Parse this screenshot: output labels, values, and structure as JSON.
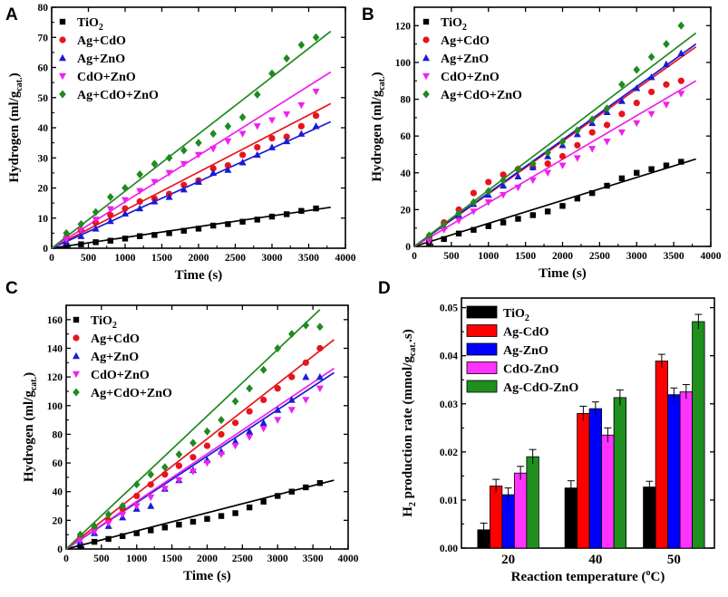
{
  "figure": {
    "panels": [
      "A",
      "B",
      "C",
      "D"
    ]
  },
  "colors": {
    "TiO2": "#000000",
    "Ag+CdO": "#e8141b",
    "Ag+ZnO": "#1a1ad6",
    "CdO+ZnO": "#ee21ee",
    "Ag+CdO+ZnO": "#1f8a1f",
    "bar_TiO2": "#000000",
    "bar_AgCdO": "#ff0000",
    "bar_AgZnO": "#0000ff",
    "bar_CdOZnO": "#ff33ff",
    "bar_AgCdOZnO": "#1f8f1f"
  },
  "chart_data": [
    {
      "panel": "A",
      "type": "scatter",
      "xlabel": "Time (s)",
      "ylabel_main": "Hydrogen (ml/g",
      "ylabel_sub": "cat.",
      "ylabel_end": ")",
      "xlim": [
        0,
        4000
      ],
      "ylim": [
        0,
        80
      ],
      "xticks": [
        0,
        500,
        1000,
        1500,
        2000,
        2500,
        3000,
        3500,
        4000
      ],
      "yticks": [
        0,
        10,
        20,
        30,
        40,
        50,
        60,
        70,
        80
      ],
      "legend": {
        "position": "top-left"
      },
      "series": [
        {
          "key": "TiO2",
          "label_main": "TiO",
          "label_sub": "2",
          "marker": "square",
          "x": [
            200,
            400,
            600,
            800,
            1000,
            1200,
            1400,
            1600,
            1800,
            2000,
            2200,
            2400,
            2600,
            2800,
            3000,
            3200,
            3400,
            3600
          ],
          "y": [
            0.8,
            1.3,
            2.0,
            2.5,
            3.2,
            4.0,
            4.4,
            5.0,
            5.8,
            6.5,
            7.5,
            8.0,
            8.8,
            9.5,
            10.5,
            11.3,
            12.4,
            13.2
          ],
          "fit": [
            3800,
            13.6
          ]
        },
        {
          "key": "Ag+CdO",
          "label_main": "Ag+CdO",
          "label_sub": "",
          "marker": "circle",
          "x": [
            200,
            400,
            600,
            800,
            1000,
            1200,
            1400,
            1600,
            1800,
            2000,
            2200,
            2400,
            2600,
            2800,
            3000,
            3200,
            3400,
            3600
          ],
          "y": [
            3.5,
            6.0,
            8.5,
            11.0,
            13.2,
            15.5,
            16.5,
            18.0,
            21.0,
            22.5,
            26.5,
            27.5,
            31.0,
            33.5,
            36.5,
            37.0,
            40.5,
            44.0
          ],
          "fit": [
            3800,
            48.0
          ]
        },
        {
          "key": "Ag+ZnO",
          "label_main": "Ag+ZnO",
          "label_sub": "",
          "marker": "triangle",
          "x": [
            200,
            400,
            600,
            800,
            1000,
            1200,
            1400,
            1600,
            1800,
            2000,
            2200,
            2400,
            2600,
            2800,
            3000,
            3200,
            3400,
            3600
          ],
          "y": [
            2.0,
            4.0,
            6.5,
            9.0,
            11.5,
            13.2,
            15.5,
            17.0,
            19.5,
            22.0,
            25.0,
            26.0,
            28.5,
            31.0,
            33.5,
            35.5,
            38.0,
            40.5
          ],
          "fit": [
            3800,
            42.0
          ]
        },
        {
          "key": "CdO+ZnO",
          "label_main": "CdO+ZnO",
          "label_sub": "",
          "marker": "triangle-down",
          "x": [
            200,
            400,
            600,
            800,
            1000,
            1200,
            1400,
            1600,
            1800,
            2000,
            2200,
            2400,
            2600,
            2800,
            3000,
            3200,
            3400,
            3600
          ],
          "y": [
            3.0,
            6.0,
            9.5,
            13.0,
            16.0,
            19.0,
            22.0,
            25.0,
            28.0,
            31.0,
            33.0,
            35.5,
            38.0,
            40.5,
            42.5,
            44.5,
            47.5,
            52.0
          ],
          "fit": [
            3800,
            58.5
          ]
        },
        {
          "key": "Ag+CdO+ZnO",
          "label_main": "Ag+CdO+ZnO",
          "label_sub": "",
          "marker": "diamond",
          "x": [
            200,
            400,
            600,
            800,
            1000,
            1200,
            1400,
            1600,
            1800,
            2000,
            2200,
            2400,
            2600,
            2800,
            3000,
            3200,
            3400,
            3600
          ],
          "y": [
            5.0,
            8.0,
            12.0,
            17.0,
            20.0,
            24.5,
            28.0,
            30.0,
            32.5,
            35.0,
            38.0,
            40.5,
            43.5,
            51.0,
            58.0,
            63.0,
            67.5,
            70.0
          ],
          "fit": [
            3800,
            72.0
          ]
        }
      ]
    },
    {
      "panel": "B",
      "type": "scatter",
      "xlabel": "Time (s)",
      "ylabel_main": "Hydrogen (ml/g",
      "ylabel_sub": "cat.",
      "ylabel_end": ")",
      "xlim": [
        0,
        4000
      ],
      "ylim": [
        0,
        130
      ],
      "xticks": [
        0,
        500,
        1000,
        1500,
        2000,
        2500,
        3000,
        3500,
        4000
      ],
      "yticks": [
        0,
        20,
        40,
        60,
        80,
        100,
        120
      ],
      "legend": {
        "position": "top-left"
      },
      "series": [
        {
          "key": "TiO2",
          "label_main": "TiO",
          "label_sub": "2",
          "marker": "square",
          "x": [
            200,
            400,
            600,
            800,
            1000,
            1200,
            1400,
            1600,
            1800,
            2000,
            2200,
            2400,
            2600,
            2800,
            3000,
            3200,
            3400,
            3600
          ],
          "y": [
            2.0,
            4.0,
            7.0,
            9.0,
            11.0,
            13.0,
            15.0,
            17.0,
            19.0,
            22.0,
            26.0,
            29.0,
            33.0,
            37.0,
            40.0,
            42.0,
            44.0,
            46.0
          ],
          "fit": [
            3800,
            47.5
          ]
        },
        {
          "key": "Ag+CdO",
          "label_main": "Ag+CdO",
          "label_sub": "",
          "marker": "circle",
          "x": [
            200,
            400,
            600,
            800,
            1000,
            1200,
            1400,
            1600,
            1800,
            2000,
            2200,
            2400,
            2600,
            2800,
            3000,
            3200,
            3400,
            3600
          ],
          "y": [
            5.0,
            13.0,
            20.0,
            29.0,
            35.0,
            39.0,
            42.0,
            43.0,
            45.0,
            49.0,
            55.0,
            62.0,
            66.0,
            72.0,
            78.0,
            84.0,
            88.0,
            90.0
          ],
          "fit": [
            3800,
            108.5
          ]
        },
        {
          "key": "Ag+ZnO",
          "label_main": "Ag+ZnO",
          "label_sub": "",
          "marker": "triangle",
          "x": [
            200,
            400,
            600,
            800,
            1000,
            1200,
            1400,
            1600,
            1800,
            2000,
            2200,
            2400,
            2600,
            2800,
            3000,
            3200,
            3400,
            3600
          ],
          "y": [
            5.0,
            11.0,
            17.0,
            23.0,
            28.0,
            33.0,
            38.0,
            43.0,
            49.0,
            55.0,
            61.0,
            67.0,
            73.0,
            79.0,
            86.0,
            92.0,
            99.0,
            105.0
          ],
          "fit": [
            3800,
            110.0
          ]
        },
        {
          "key": "CdO+ZnO",
          "label_main": "CdO+ZnO",
          "label_sub": "",
          "marker": "triangle-down",
          "x": [
            200,
            400,
            600,
            800,
            1000,
            1200,
            1400,
            1600,
            1800,
            2000,
            2200,
            2400,
            2600,
            2800,
            3000,
            3200,
            3400,
            3600
          ],
          "y": [
            3.0,
            9.0,
            14.0,
            19.0,
            24.0,
            28.0,
            32.0,
            36.0,
            40.0,
            44.0,
            48.0,
            53.0,
            57.0,
            62.0,
            67.0,
            72.0,
            77.0,
            83.0
          ],
          "fit": [
            3800,
            90.0
          ]
        },
        {
          "key": "Ag+CdO+ZnO",
          "label_main": "Ag+CdO+ZnO",
          "label_sub": "",
          "marker": "diamond",
          "x": [
            200,
            400,
            600,
            800,
            1000,
            1200,
            1400,
            1600,
            1800,
            2000,
            2200,
            2400,
            2600,
            2800,
            3000,
            3200,
            3400,
            3600
          ],
          "y": [
            6.0,
            12.0,
            18.0,
            24.0,
            30.0,
            36.0,
            42.0,
            45.0,
            51.0,
            57.0,
            63.0,
            69.0,
            75.0,
            88.0,
            96.0,
            103.0,
            110.0,
            120.0
          ],
          "fit": [
            3800,
            116.0
          ]
        }
      ]
    },
    {
      "panel": "C",
      "type": "scatter",
      "xlabel": "Time (s)",
      "ylabel_main": "Hydrogen (ml/g",
      "ylabel_sub": "cat.",
      "ylabel_end": ")",
      "xlim": [
        0,
        4000
      ],
      "ylim": [
        0,
        170
      ],
      "xticks": [
        0,
        500,
        1000,
        1500,
        2000,
        2500,
        3000,
        3500,
        4000
      ],
      "yticks": [
        0,
        20,
        40,
        60,
        80,
        100,
        120,
        140,
        160
      ],
      "legend": {
        "position": "top-left"
      },
      "series": [
        {
          "key": "TiO2",
          "label_main": "TiO",
          "label_sub": "2",
          "marker": "square",
          "x": [
            200,
            400,
            600,
            800,
            1000,
            1200,
            1400,
            1600,
            1800,
            2000,
            2200,
            2400,
            2600,
            2800,
            3000,
            3200,
            3400,
            3600
          ],
          "y": [
            2.0,
            5.0,
            7.0,
            9.0,
            11.0,
            13.0,
            15.0,
            17.0,
            19.0,
            21.0,
            23.0,
            25.0,
            29.0,
            33.0,
            37.0,
            40.0,
            43.0,
            46.0
          ],
          "fit": [
            3800,
            48.0
          ]
        },
        {
          "key": "Ag+CdO",
          "label_main": "Ag+CdO",
          "label_sub": "",
          "marker": "circle",
          "x": [
            200,
            400,
            600,
            800,
            1000,
            1200,
            1400,
            1600,
            1800,
            2000,
            2200,
            2400,
            2600,
            2800,
            3000,
            3200,
            3400,
            3600
          ],
          "y": [
            8.0,
            14.0,
            20.0,
            28.0,
            37.0,
            45.0,
            52.0,
            58.0,
            64.0,
            72.0,
            80.0,
            88.0,
            96.0,
            104.0,
            112.0,
            120.0,
            130.0,
            140.0
          ],
          "fit": [
            3800,
            146.0
          ]
        },
        {
          "key": "Ag+ZnO",
          "label_main": "Ag+ZnO",
          "label_sub": "",
          "marker": "triangle",
          "x": [
            200,
            400,
            600,
            800,
            1000,
            1200,
            1400,
            1600,
            1800,
            2000,
            2200,
            2400,
            2600,
            2800,
            3000,
            3200,
            3400,
            3600
          ],
          "y": [
            5.0,
            11.0,
            16.0,
            22.0,
            28.0,
            30.0,
            42.0,
            48.0,
            55.0,
            62.0,
            68.0,
            75.0,
            82.0,
            88.0,
            97.0,
            104.0,
            120.0,
            120.0
          ],
          "fit": [
            3800,
            123.0
          ]
        },
        {
          "key": "CdO+ZnO",
          "label_main": "CdO+ZnO",
          "label_sub": "",
          "marker": "triangle-down",
          "x": [
            200,
            400,
            600,
            800,
            1000,
            1200,
            1400,
            1600,
            1800,
            2000,
            2200,
            2400,
            2600,
            2800,
            3000,
            3200,
            3400,
            3600
          ],
          "y": [
            6.0,
            12.0,
            18.0,
            24.0,
            30.0,
            36.0,
            42.0,
            48.0,
            54.0,
            60.0,
            66.0,
            72.0,
            78.0,
            84.0,
            90.0,
            97.0,
            104.0,
            112.0
          ],
          "fit": [
            3800,
            126.0
          ]
        },
        {
          "key": "Ag+CdO+ZnO",
          "label_main": "Ag+CdO+ZnO",
          "label_sub": "",
          "marker": "diamond",
          "x": [
            200,
            400,
            600,
            800,
            1000,
            1200,
            1400,
            1600,
            1800,
            2000,
            2200,
            2400,
            2600,
            2800,
            3000,
            3200,
            3400,
            3600
          ],
          "y": [
            10.0,
            16.0,
            24.0,
            30.0,
            45.0,
            52.0,
            57.0,
            66.0,
            74.0,
            82.0,
            90.0,
            103.0,
            112.0,
            125.0,
            140.0,
            150.0,
            156.0,
            155.0
          ],
          "fit": [
            3600,
            167.0
          ]
        }
      ]
    },
    {
      "panel": "D",
      "type": "bar",
      "xlabel": "Reaction temperature (",
      "xlabel_sup": "o",
      "xlabel_end": "C)",
      "ylabel_h": "H",
      "ylabel_sub2": "2",
      "ylabel_main": " production rate (mmol/g",
      "ylabel_sub": "cat.",
      "ylabel_end": ".s)",
      "categories": [
        "20",
        "40",
        "50"
      ],
      "ylim": [
        0,
        0.052
      ],
      "yticks": [
        "0.00",
        "0.01",
        "0.02",
        "0.03",
        "0.04",
        "0.05"
      ],
      "legend": {
        "position": "top-left"
      },
      "series": [
        {
          "key": "bar_TiO2",
          "label_main": "TiO",
          "label_sub": "2",
          "values": [
            0.0038,
            0.0125,
            0.0127
          ],
          "errors": [
            0.0014,
            0.0015,
            0.0012
          ]
        },
        {
          "key": "bar_AgCdO",
          "label_main": "Ag-CdO",
          "label_sub": "",
          "values": [
            0.0129,
            0.028,
            0.0389
          ],
          "errors": [
            0.0014,
            0.0015,
            0.0014
          ]
        },
        {
          "key": "bar_AgZnO",
          "label_main": "Ag-ZnO",
          "label_sub": "",
          "values": [
            0.0111,
            0.029,
            0.0319
          ],
          "errors": [
            0.0014,
            0.0014,
            0.0014
          ]
        },
        {
          "key": "bar_CdOZnO",
          "label_main": "CdO-ZnO",
          "label_sub": "",
          "values": [
            0.0156,
            0.0235,
            0.0325
          ],
          "errors": [
            0.0014,
            0.0015,
            0.0015
          ]
        },
        {
          "key": "bar_AgCdOZnO",
          "label_main": "Ag-CdO-ZnO",
          "label_sub": "",
          "values": [
            0.019,
            0.0313,
            0.0471
          ],
          "errors": [
            0.0015,
            0.0016,
            0.0015
          ]
        }
      ]
    }
  ]
}
